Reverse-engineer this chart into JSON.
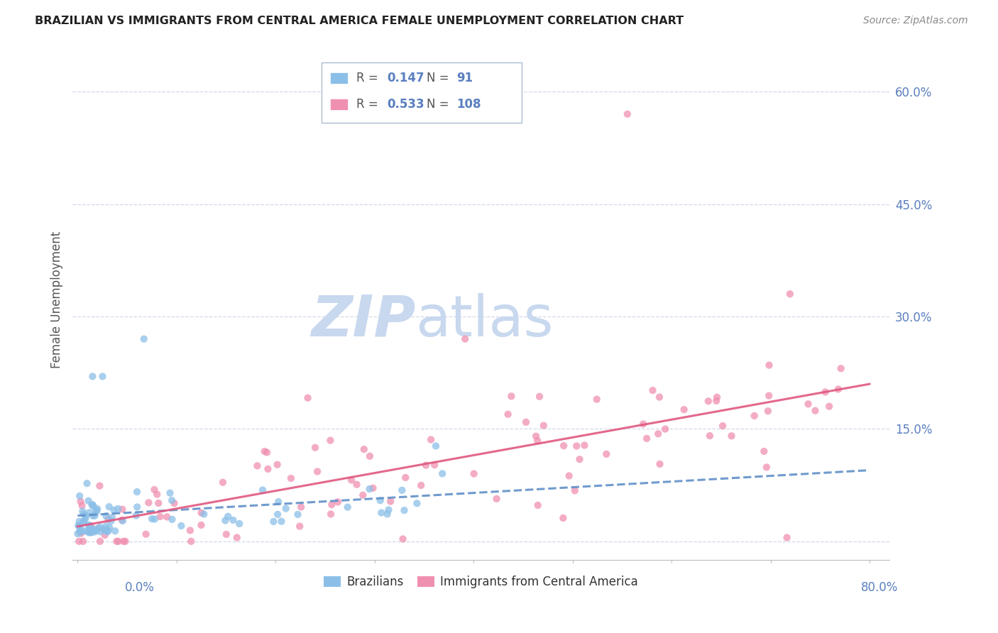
{
  "title": "BRAZILIAN VS IMMIGRANTS FROM CENTRAL AMERICA FEMALE UNEMPLOYMENT CORRELATION CHART",
  "source": "Source: ZipAtlas.com",
  "ylabel": "Female Unemployment",
  "yticks": [
    0.0,
    0.15,
    0.3,
    0.45,
    0.6
  ],
  "ytick_labels": [
    "",
    "15.0%",
    "30.0%",
    "45.0%",
    "60.0%"
  ],
  "xlim": [
    -0.005,
    0.82
  ],
  "ylim": [
    -0.025,
    0.67
  ],
  "color_blue": "#8bbfe8",
  "color_pink": "#f090b0",
  "line_blue": "#6090c8",
  "line_pink": "#e05880",
  "watermark_zip": "ZIP",
  "watermark_atlas": "atlas",
  "watermark_color_zip": "#c8d8ee",
  "watermark_color_atlas": "#c8d8ee",
  "background_color": "#ffffff",
  "grid_color": "#d0d8e8",
  "tick_color": "#5a7fbf",
  "title_color": "#222222",
  "source_color": "#888888",
  "ylabel_color": "#555555",
  "legend_label1": "Brazilians",
  "legend_label2": "Immigrants from Central America",
  "r1": "0.147",
  "n1": "91",
  "r2": "0.533",
  "n2": "108"
}
